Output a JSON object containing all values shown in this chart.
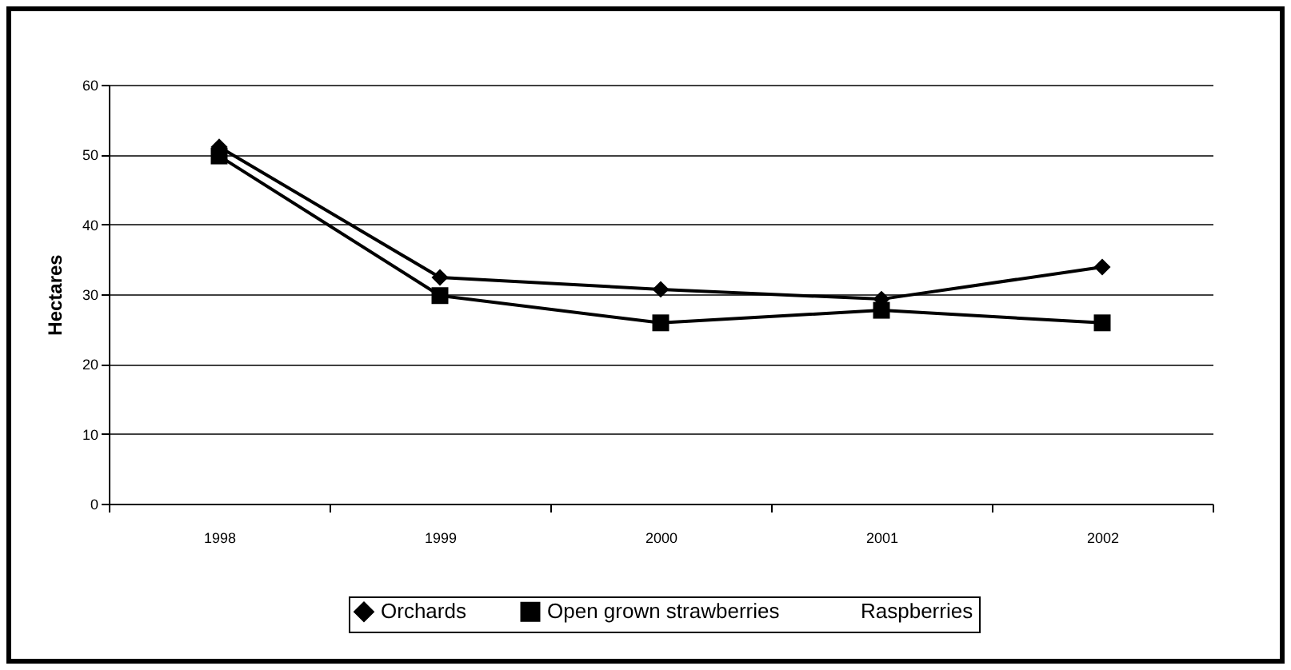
{
  "chart_data": {
    "type": "line",
    "ylabel": "Hectares",
    "categories": [
      "1998",
      "1999",
      "2000",
      "2001",
      "2002"
    ],
    "series": [
      {
        "name": "Orchards",
        "color": "#000000",
        "marker": "diamond",
        "values": [
          51.1,
          32.4,
          30.7,
          29.3,
          33.9
        ]
      },
      {
        "name": "Open grown strawberries",
        "color": "#000000",
        "marker": "square",
        "values": [
          49.8,
          29.8,
          25.9,
          27.7,
          25.9
        ]
      },
      {
        "name": "Raspberries",
        "marker": "none",
        "values": [
          null,
          null,
          null,
          null,
          null
        ]
      }
    ],
    "ylim": [
      0,
      60
    ],
    "yticks": [
      0,
      10,
      20,
      30,
      40,
      50,
      60
    ],
    "grid": "y",
    "legend": "bottom"
  }
}
